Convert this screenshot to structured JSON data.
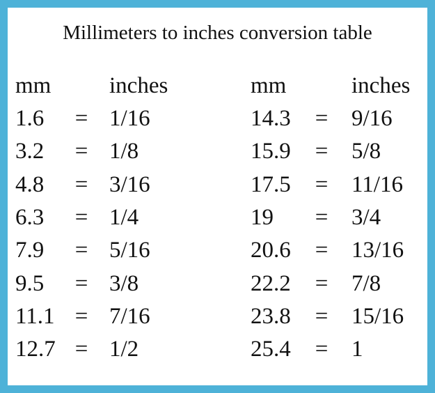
{
  "title": "Millimeters to inches conversion table",
  "headers": [
    "mm",
    "inches",
    "mm",
    "inches"
  ],
  "separator": "=",
  "left_rows": [
    [
      "1.6",
      "1/16"
    ],
    [
      "3.2",
      "1/8"
    ],
    [
      "4.8",
      "3/16"
    ],
    [
      "6.3",
      "1/4"
    ],
    [
      "7.9",
      "5/16"
    ],
    [
      "9.5",
      "3/8"
    ],
    [
      "11.1",
      "7/16"
    ],
    [
      "12.7",
      "1/2"
    ]
  ],
  "right_rows": [
    [
      "14.3",
      "9/16"
    ],
    [
      "15.9",
      "5/8"
    ],
    [
      "17.5",
      "11/16"
    ],
    [
      "19",
      "3/4"
    ],
    [
      "20.6",
      "13/16"
    ],
    [
      "22.2",
      "7/8"
    ],
    [
      "23.8",
      "15/16"
    ],
    [
      "25.4",
      "1"
    ]
  ]
}
